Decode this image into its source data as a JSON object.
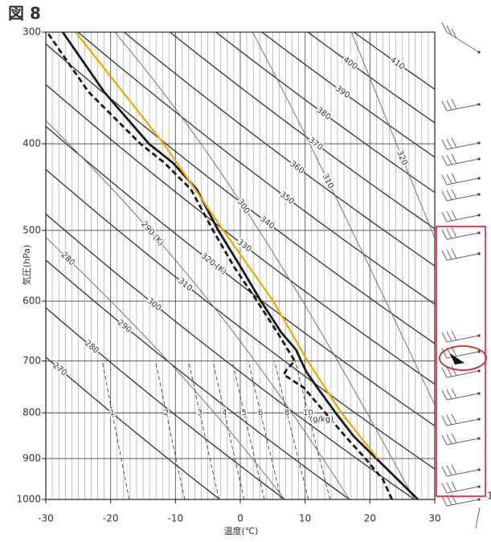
{
  "chart_data": {
    "type": "emagram",
    "title": "図 8",
    "xlabel": "温度(℃)",
    "ylabel": "気圧(hPa)",
    "xlim": [
      -30,
      30
    ],
    "ylim": [
      1000,
      300
    ],
    "log_y": true,
    "xticks": [
      -30,
      -20,
      -10,
      0,
      10,
      20,
      30
    ],
    "yticks": [
      300,
      400,
      500,
      600,
      700,
      800,
      900,
      1000
    ],
    "series": [
      {
        "style": "solid",
        "color": "#1a1a1a",
        "x": [
          27.4,
          24.3,
          21,
          17.5,
          14.7,
          11.9,
          10.2,
          9.4,
          8.6,
          6.3,
          3.2,
          0.1,
          -3.4,
          -6.7,
          -10.4,
          -14.1,
          -21,
          -27.4
        ],
        "y": [
          1000,
          950,
          900,
          850,
          800,
          750,
          720,
          700,
          680,
          650,
          600,
          550,
          500,
          450,
          420,
          400,
          350,
          300
        ]
      },
      {
        "style": "dashed",
        "color": "#1a1a1a",
        "x": [
          23.4,
          22,
          19.3,
          16.2,
          13.1,
          9.8,
          6.7,
          7.2,
          8.4,
          5.7,
          2.6,
          -0.9,
          -4.2,
          -7.6,
          -11.7,
          -15.4,
          -23.4,
          -29.8
        ],
        "y": [
          1000,
          950,
          900,
          850,
          800,
          750,
          725,
          715,
          700,
          650,
          600,
          550,
          500,
          450,
          420,
          400,
          350,
          300
        ]
      },
      {
        "style": "solid",
        "color": "#f0a800",
        "x": [
          21.2,
          15.6,
          10.4,
          5.1,
          -2.6,
          -11.8,
          -25.4
        ],
        "y": [
          900,
          800,
          700,
          600,
          500,
          400,
          300
        ]
      }
    ],
    "dry_adiabats": [
      270,
      280,
      290,
      300,
      310,
      {
        "value": 320,
        "label": "320 (K)"
      },
      330,
      340,
      350,
      360,
      370,
      380,
      390,
      400,
      410
    ],
    "moist_adiabats": [
      280,
      {
        "value": 290,
        "label": "290 (K)"
      },
      300,
      310,
      320
    ],
    "mixing_ratios": [
      1,
      2,
      3,
      4,
      5,
      6,
      8,
      10
    ],
    "mixing_ratio_unit": "(g/kg)",
    "annotations": [
      "1"
    ]
  }
}
